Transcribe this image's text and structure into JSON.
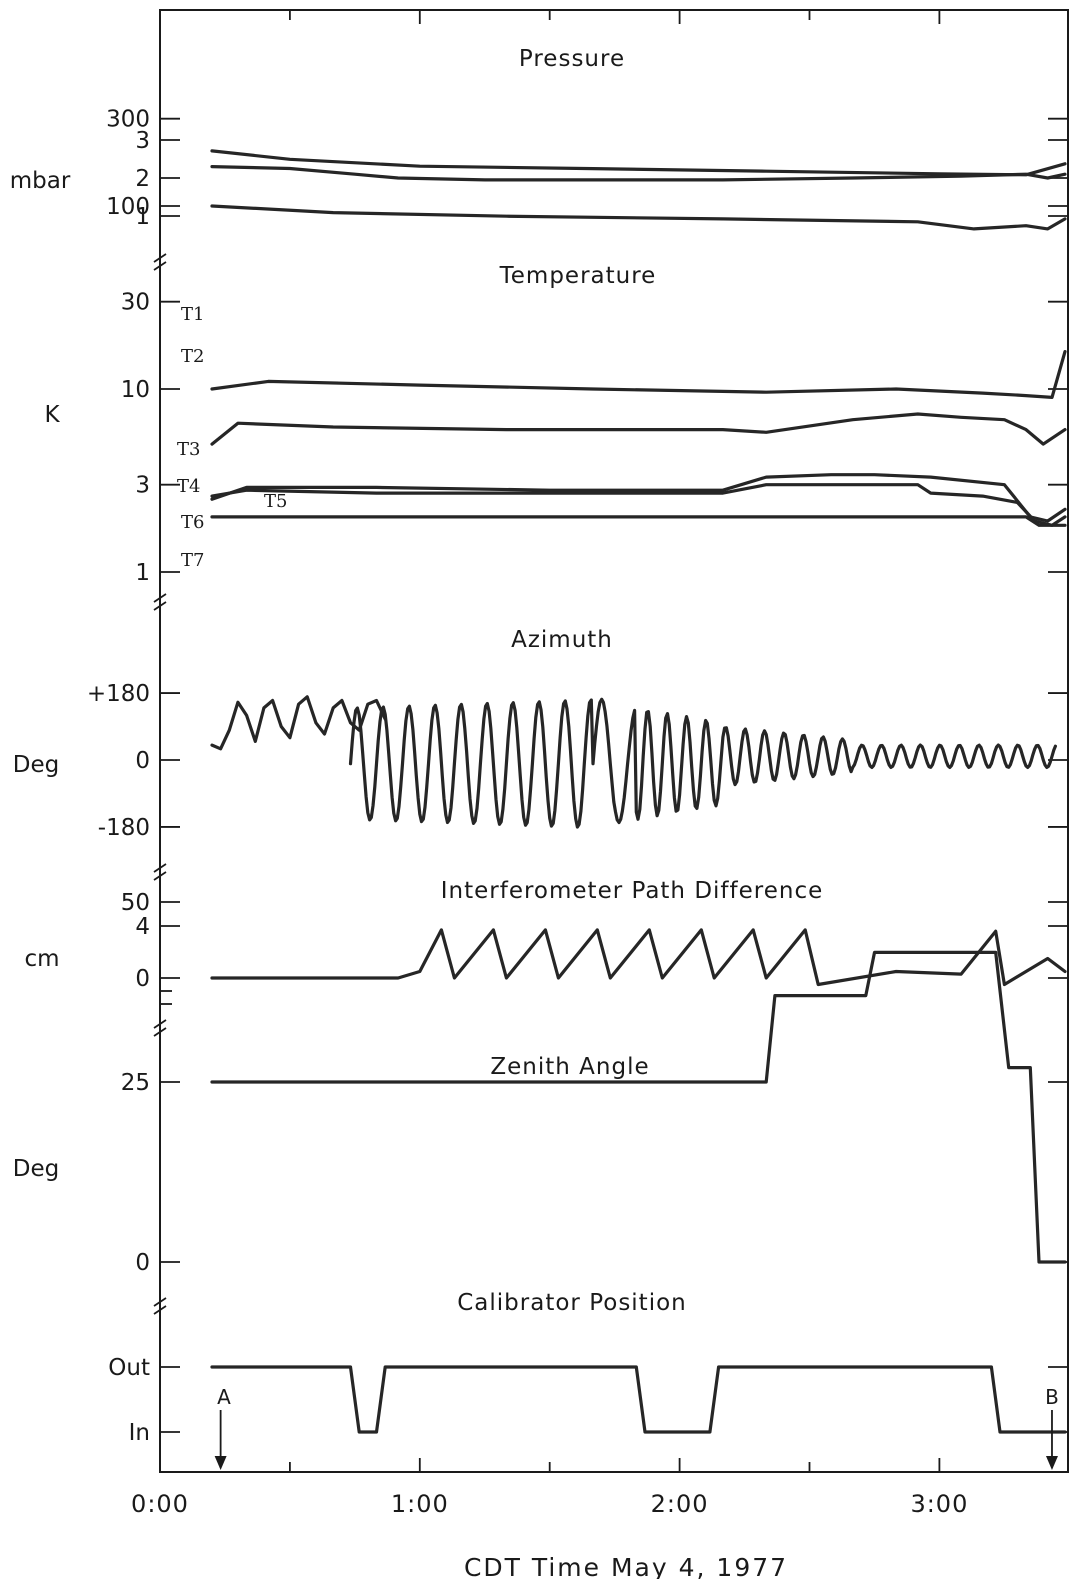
{
  "chart_data": {
    "type": "line",
    "x_axis": {
      "label": "CDT Time  May 4, 1977",
      "ticks": [
        "0:00",
        "1:00",
        "2:00",
        "3:00"
      ],
      "tick_values_min": [
        0,
        60,
        120,
        180
      ],
      "range_min": [
        0,
        209
      ]
    },
    "markers": [
      {
        "label": "A",
        "time_min": 14
      },
      {
        "label": "B",
        "time_min": 206
      }
    ],
    "panels": [
      {
        "id": "pressure",
        "title": "Pressure",
        "unit": "mbar",
        "scale": "linear",
        "tick_labels": [
          "3",
          "2",
          "1"
        ],
        "tick_values": [
          3,
          2,
          1
        ],
        "series": [
          {
            "name": "",
            "points": [
              [
                12,
                2.3
              ],
              [
                30,
                2.25
              ],
              [
                45,
                2.1
              ],
              [
                55,
                2.0
              ],
              [
                75,
                1.95
              ],
              [
                100,
                1.95
              ],
              [
                130,
                1.95
              ],
              [
                160,
                2.0
              ],
              [
                185,
                2.05
              ],
              [
                200,
                2.1
              ],
              [
                205,
                2.0
              ],
              [
                209,
                2.1
              ]
            ]
          }
        ]
      },
      {
        "id": "temperature",
        "title": "Temperature",
        "unit": "K",
        "scale": "log",
        "tick_labels": [
          "300",
          "100",
          "30",
          "10",
          "3",
          "1"
        ],
        "tick_values": [
          300,
          100,
          30,
          10,
          3,
          1
        ],
        "series": [
          {
            "name": "T1",
            "points": [
              [
                12,
                200
              ],
              [
                30,
                180
              ],
              [
                60,
                165
              ],
              [
                100,
                160
              ],
              [
                140,
                155
              ],
              [
                180,
                150
              ],
              [
                200,
                148
              ],
              [
                209,
                170
              ]
            ]
          },
          {
            "name": "T2",
            "points": [
              [
                12,
                100
              ],
              [
                40,
                92
              ],
              [
                80,
                88
              ],
              [
                130,
                85
              ],
              [
                175,
                82
              ],
              [
                188,
                75
              ],
              [
                200,
                78
              ],
              [
                205,
                75
              ],
              [
                209,
                85
              ]
            ]
          },
          {
            "name": "T3",
            "points": [
              [
                12,
                10
              ],
              [
                25,
                11
              ],
              [
                60,
                10.5
              ],
              [
                100,
                10
              ],
              [
                140,
                9.6
              ],
              [
                170,
                10
              ],
              [
                190,
                9.5
              ],
              [
                200,
                9.2
              ],
              [
                206,
                9
              ],
              [
                209,
                16
              ]
            ]
          },
          {
            "name": "T4",
            "points": [
              [
                12,
                5
              ],
              [
                18,
                6.5
              ],
              [
                40,
                6.2
              ],
              [
                80,
                6.0
              ],
              [
                130,
                6.0
              ],
              [
                140,
                5.8
              ],
              [
                160,
                6.8
              ],
              [
                175,
                7.3
              ],
              [
                185,
                7.0
              ],
              [
                195,
                6.8
              ],
              [
                200,
                6.0
              ],
              [
                204,
                5.0
              ],
              [
                209,
                6
              ]
            ]
          },
          {
            "name": "T5",
            "points": [
              [
                12,
                2.5
              ],
              [
                20,
                2.9
              ],
              [
                50,
                2.9
              ],
              [
                90,
                2.8
              ],
              [
                130,
                2.8
              ],
              [
                140,
                3.3
              ],
              [
                155,
                3.4
              ],
              [
                165,
                3.4
              ],
              [
                178,
                3.3
              ],
              [
                195,
                3.0
              ],
              [
                201,
                2.0
              ],
              [
                205,
                1.9
              ],
              [
                209,
                2.2
              ]
            ]
          },
          {
            "name": "T6",
            "points": [
              [
                12,
                2.6
              ],
              [
                20,
                2.8
              ],
              [
                50,
                2.7
              ],
              [
                90,
                2.7
              ],
              [
                130,
                2.7
              ],
              [
                140,
                3.0
              ],
              [
                160,
                3.0
              ],
              [
                175,
                3.0
              ],
              [
                178,
                2.7
              ],
              [
                190,
                2.6
              ],
              [
                198,
                2.4
              ],
              [
                202,
                1.9
              ],
              [
                206,
                1.8
              ],
              [
                209,
                2.0
              ]
            ]
          },
          {
            "name": "T7",
            "points": [
              [
                12,
                2.0
              ],
              [
                60,
                2.0
              ],
              [
                120,
                2.0
              ],
              [
                180,
                2.0
              ],
              [
                200,
                2.0
              ],
              [
                203,
                1.8
              ],
              [
                209,
                1.8
              ]
            ]
          }
        ]
      },
      {
        "id": "azimuth",
        "title": "Azimuth",
        "unit": "Deg",
        "scale": "linear",
        "tick_labels": [
          "+180",
          "0",
          "-180"
        ],
        "tick_values": [
          180,
          0,
          -180
        ],
        "series": [
          {
            "name": "",
            "points": [
              [
                12,
                40
              ],
              [
                14,
                30
              ],
              [
                16,
                80
              ],
              [
                18,
                155
              ],
              [
                20,
                120
              ],
              [
                22,
                50
              ],
              [
                24,
                140
              ],
              [
                26,
                160
              ],
              [
                28,
                90
              ],
              [
                30,
                60
              ],
              [
                32,
                150
              ],
              [
                34,
                170
              ],
              [
                36,
                100
              ],
              [
                38,
                70
              ],
              [
                40,
                140
              ],
              [
                42,
                160
              ],
              [
                44,
                100
              ],
              [
                46,
                80
              ],
              [
                48,
                150
              ],
              [
                50,
                160
              ],
              [
                52,
                110
              ]
            ]
          }
        ]
      },
      {
        "id": "interferometer",
        "title": "Interferometer Path Difference",
        "unit": "cm",
        "scale": "linear",
        "tick_labels": [
          "4",
          "0"
        ],
        "tick_values": [
          4,
          0
        ],
        "series": [
          {
            "name": "",
            "points": [
              [
                12,
                0
              ],
              [
                55,
                0
              ],
              [
                60,
                0.5
              ],
              [
                65,
                3.7
              ],
              [
                68,
                0
              ],
              [
                77,
                3.7
              ],
              [
                80,
                0
              ],
              [
                89,
                3.7
              ],
              [
                92,
                0
              ],
              [
                101,
                3.7
              ],
              [
                104,
                0
              ],
              [
                113,
                3.7
              ],
              [
                116,
                0
              ],
              [
                125,
                3.7
              ],
              [
                128,
                0
              ],
              [
                137,
                3.7
              ],
              [
                140,
                0
              ],
              [
                149,
                3.7
              ],
              [
                152,
                -0.5
              ],
              [
                170,
                0.5
              ],
              [
                185,
                0.3
              ],
              [
                193,
                3.6
              ],
              [
                195,
                -0.5
              ],
              [
                200,
                0.5
              ],
              [
                205,
                1.5
              ],
              [
                209,
                0.5
              ]
            ]
          }
        ]
      },
      {
        "id": "zenith",
        "title": "Zenith Angle",
        "unit": "Deg",
        "scale": "linear",
        "tick_labels": [
          "50",
          "25",
          "0"
        ],
        "tick_values": [
          50,
          25,
          0
        ],
        "series": [
          {
            "name": "",
            "points": [
              [
                12,
                25
              ],
              [
                140,
                25
              ],
              [
                142,
                37
              ],
              [
                163,
                37
              ],
              [
                165,
                43
              ],
              [
                193,
                43
              ],
              [
                196,
                27
              ],
              [
                201,
                27
              ],
              [
                203,
                0
              ],
              [
                209,
                0
              ]
            ]
          }
        ]
      },
      {
        "id": "calibrator",
        "title": "Calibrator Position",
        "unit": "",
        "scale": "categorical",
        "tick_labels": [
          "Out",
          "In"
        ],
        "tick_values": [
          1,
          0
        ],
        "series": [
          {
            "name": "",
            "points": [
              [
                12,
                1
              ],
              [
                44,
                1
              ],
              [
                46,
                0
              ],
              [
                50,
                0
              ],
              [
                52,
                1
              ],
              [
                110,
                1
              ],
              [
                112,
                0
              ],
              [
                127,
                0
              ],
              [
                129,
                1
              ],
              [
                192,
                1
              ],
              [
                194,
                0
              ],
              [
                209,
                0
              ]
            ]
          }
        ]
      }
    ]
  }
}
